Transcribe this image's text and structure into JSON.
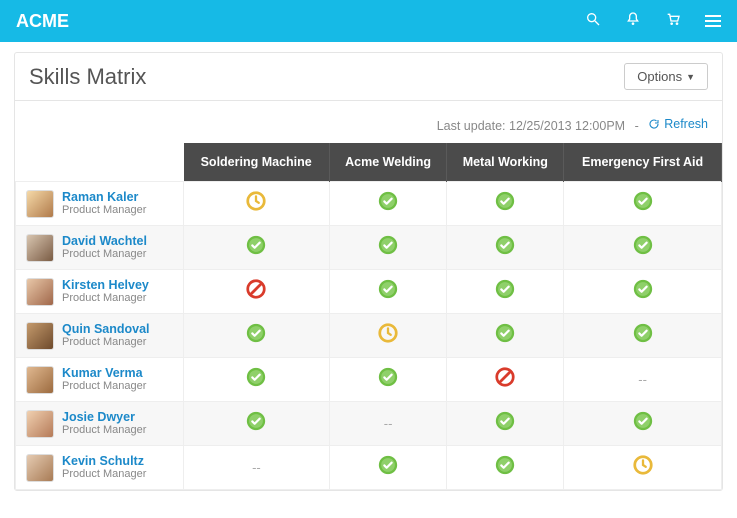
{
  "colors": {
    "topbar": "#16bae6",
    "header_bg": "#4b4b4b",
    "link": "#1c89c9",
    "check_outer": "#6fbf44",
    "check_inner": "#ffffff",
    "pending_outer": "#e9b93a",
    "forbidden": "#d93b2b",
    "row_alt": "#f7f7f7",
    "border": "#e5e5e5",
    "muted_text": "#888888"
  },
  "topbar": {
    "brand": "ACME",
    "icons": [
      "search-icon",
      "bell-icon",
      "cart-icon",
      "menu-icon"
    ]
  },
  "panel": {
    "title": "Skills Matrix",
    "options_label": "Options",
    "last_update_prefix": "Last update:",
    "last_update_value": "12/25/2013 12:00PM",
    "refresh_label": "Refresh"
  },
  "columns": [
    "Soldering Machine",
    "Acme Welding",
    "Metal Working",
    "Emergency First Aid"
  ],
  "status_legend": {
    "check": "completed",
    "pending": "in-progress",
    "forbidden": "not-certified",
    "dash": "n/a"
  },
  "people": [
    {
      "name": "Raman Kaler",
      "role": "Product Manager",
      "avatar": "a1",
      "statuses": [
        "pending",
        "check",
        "check",
        "check"
      ]
    },
    {
      "name": "David Wachtel",
      "role": "Product Manager",
      "avatar": "a2",
      "statuses": [
        "check",
        "check",
        "check",
        "check"
      ]
    },
    {
      "name": "Kirsten Helvey",
      "role": "Product Manager",
      "avatar": "a3",
      "statuses": [
        "forbidden",
        "check",
        "check",
        "check"
      ]
    },
    {
      "name": "Quin Sandoval",
      "role": "Product Manager",
      "avatar": "a4",
      "statuses": [
        "check",
        "pending",
        "check",
        "check"
      ]
    },
    {
      "name": "Kumar Verma",
      "role": "Product Manager",
      "avatar": "a5",
      "statuses": [
        "check",
        "check",
        "forbidden",
        "dash"
      ]
    },
    {
      "name": "Josie Dwyer",
      "role": "Product Manager",
      "avatar": "a6",
      "statuses": [
        "check",
        "dash",
        "check",
        "check"
      ]
    },
    {
      "name": "Kevin Schultz",
      "role": "Product Manager",
      "avatar": "a7",
      "statuses": [
        "dash",
        "check",
        "check",
        "pending"
      ]
    }
  ]
}
